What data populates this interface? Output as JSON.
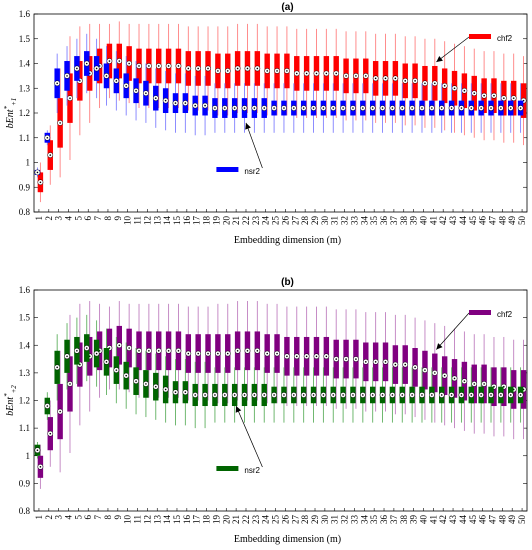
{
  "chart_data": [
    {
      "type": "box",
      "panel_title": "(a)",
      "xlabel": "Embedding dimension (m)",
      "ylabel_parts": [
        "bEn",
        "t",
        "*",
        "+1"
      ],
      "ylim": [
        0.8,
        1.6
      ],
      "yticks": [
        "0.8",
        "0.9",
        "1",
        "1.1",
        "1.2",
        "1.3",
        "1.4",
        "1.5",
        "1.6"
      ],
      "x": [
        1,
        50
      ],
      "series": [
        {
          "name": "chf2",
          "color": "#ff0000",
          "whisker_color": "#ff8080",
          "medians": [
            0.92,
            1.03,
            1.16,
            1.26,
            1.33,
            1.36,
            1.39,
            1.41,
            1.41,
            1.4,
            1.39,
            1.39,
            1.39,
            1.39,
            1.39,
            1.38,
            1.38,
            1.38,
            1.37,
            1.37,
            1.38,
            1.38,
            1.38,
            1.37,
            1.37,
            1.37,
            1.36,
            1.36,
            1.36,
            1.36,
            1.36,
            1.35,
            1.35,
            1.35,
            1.34,
            1.34,
            1.34,
            1.33,
            1.33,
            1.32,
            1.32,
            1.31,
            1.3,
            1.29,
            1.28,
            1.27,
            1.27,
            1.26,
            1.26,
            1.25
          ],
          "spread": [
            0.04,
            0.06,
            0.1,
            0.1,
            0.08,
            0.07,
            0.07,
            0.07,
            0.07,
            0.07,
            0.07,
            0.07,
            0.07,
            0.07,
            0.07,
            0.07,
            0.07,
            0.07,
            0.07,
            0.07,
            0.07,
            0.07,
            0.07,
            0.07,
            0.07,
            0.07,
            0.07,
            0.07,
            0.07,
            0.07,
            0.07,
            0.07,
            0.07,
            0.07,
            0.07,
            0.07,
            0.07,
            0.07,
            0.07,
            0.07,
            0.07,
            0.07,
            0.07,
            0.07,
            0.07,
            0.07,
            0.07,
            0.07,
            0.07,
            0.07
          ],
          "whisker_span": [
            0.08,
            0.12,
            0.22,
            0.25,
            0.22,
            0.2,
            0.17,
            0.15,
            0.16,
            0.16,
            0.17,
            0.17,
            0.17,
            0.17,
            0.17,
            0.17,
            0.17,
            0.17,
            0.18,
            0.18,
            0.18,
            0.18,
            0.18,
            0.18,
            0.18,
            0.18,
            0.18,
            0.18,
            0.18,
            0.18,
            0.18,
            0.18,
            0.18,
            0.18,
            0.18,
            0.18,
            0.18,
            0.18,
            0.18,
            0.18,
            0.18,
            0.18,
            0.18,
            0.18,
            0.18,
            0.18,
            0.18,
            0.18,
            0.18,
            0.18
          ]
        },
        {
          "name": "nsr2",
          "color": "#0000ff",
          "whisker_color": "#8080ff",
          "medians": [
            0.96,
            1.1,
            1.32,
            1.35,
            1.38,
            1.4,
            1.38,
            1.35,
            1.33,
            1.31,
            1.29,
            1.28,
            1.26,
            1.25,
            1.24,
            1.24,
            1.23,
            1.23,
            1.22,
            1.22,
            1.22,
            1.22,
            1.22,
            1.22,
            1.22,
            1.22,
            1.22,
            1.22,
            1.22,
            1.22,
            1.22,
            1.22,
            1.22,
            1.22,
            1.22,
            1.22,
            1.22,
            1.22,
            1.22,
            1.22,
            1.22,
            1.22,
            1.22,
            1.22,
            1.22,
            1.22,
            1.22,
            1.22,
            1.22,
            1.22
          ],
          "spread": [
            0.01,
            0.02,
            0.06,
            0.06,
            0.05,
            0.05,
            0.05,
            0.05,
            0.05,
            0.05,
            0.05,
            0.05,
            0.05,
            0.05,
            0.04,
            0.04,
            0.04,
            0.04,
            0.04,
            0.04,
            0.04,
            0.04,
            0.04,
            0.04,
            0.03,
            0.03,
            0.03,
            0.03,
            0.03,
            0.03,
            0.03,
            0.03,
            0.03,
            0.03,
            0.03,
            0.03,
            0.03,
            0.03,
            0.03,
            0.03,
            0.03,
            0.03,
            0.03,
            0.03,
            0.03,
            0.03,
            0.03,
            0.03,
            0.03,
            0.03
          ],
          "whisker_span": [
            0.02,
            0.03,
            0.12,
            0.12,
            0.12,
            0.12,
            0.12,
            0.12,
            0.12,
            0.12,
            0.12,
            0.12,
            0.12,
            0.12,
            0.12,
            0.12,
            0.12,
            0.12,
            0.1,
            0.1,
            0.1,
            0.1,
            0.1,
            0.1,
            0.1,
            0.1,
            0.1,
            0.1,
            0.1,
            0.1,
            0.1,
            0.1,
            0.1,
            0.1,
            0.1,
            0.1,
            0.1,
            0.1,
            0.1,
            0.1,
            0.1,
            0.1,
            0.1,
            0.1,
            0.1,
            0.1,
            0.1,
            0.1,
            0.1,
            0.1
          ]
        }
      ],
      "legend": [
        {
          "label": "chf2",
          "color": "#ff0000",
          "anchor_x": 41,
          "anchor_y": 1.39
        },
        {
          "label": "nsr2",
          "color": "#0000ff",
          "anchor_x": 22,
          "anchor_y": 1.16
        }
      ]
    },
    {
      "type": "box",
      "panel_title": "(b)",
      "xlabel": "Embedding dimension (m)",
      "ylabel_parts": [
        "bEn",
        "t",
        "*",
        "+2"
      ],
      "ylim": [
        0.8,
        1.6
      ],
      "yticks": [
        "0.8",
        "0.9",
        "1",
        "1.1",
        "1.2",
        "1.3",
        "1.4",
        "1.5",
        "1.6"
      ],
      "x": [
        1,
        50
      ],
      "series": [
        {
          "name": "chf2",
          "color": "#800080",
          "whisker_color": "#c080c0",
          "medians": [
            0.96,
            1.08,
            1.16,
            1.26,
            1.33,
            1.36,
            1.38,
            1.39,
            1.4,
            1.39,
            1.38,
            1.38,
            1.38,
            1.38,
            1.38,
            1.37,
            1.37,
            1.37,
            1.37,
            1.37,
            1.38,
            1.38,
            1.38,
            1.37,
            1.37,
            1.36,
            1.36,
            1.36,
            1.36,
            1.36,
            1.35,
            1.35,
            1.35,
            1.34,
            1.34,
            1.34,
            1.33,
            1.33,
            1.32,
            1.31,
            1.3,
            1.29,
            1.28,
            1.27,
            1.26,
            1.26,
            1.25,
            1.25,
            1.24,
            1.24
          ],
          "spread": [
            0.04,
            0.06,
            0.1,
            0.1,
            0.08,
            0.07,
            0.07,
            0.07,
            0.07,
            0.07,
            0.07,
            0.07,
            0.07,
            0.07,
            0.07,
            0.07,
            0.07,
            0.07,
            0.07,
            0.07,
            0.07,
            0.07,
            0.07,
            0.07,
            0.07,
            0.07,
            0.07,
            0.07,
            0.07,
            0.07,
            0.07,
            0.07,
            0.07,
            0.07,
            0.07,
            0.07,
            0.07,
            0.07,
            0.07,
            0.07,
            0.07,
            0.07,
            0.07,
            0.07,
            0.07,
            0.07,
            0.07,
            0.07,
            0.07,
            0.07
          ],
          "whisker_span": [
            0.08,
            0.12,
            0.22,
            0.25,
            0.22,
            0.2,
            0.17,
            0.15,
            0.16,
            0.16,
            0.17,
            0.17,
            0.17,
            0.17,
            0.17,
            0.17,
            0.17,
            0.17,
            0.18,
            0.18,
            0.18,
            0.18,
            0.18,
            0.18,
            0.18,
            0.18,
            0.18,
            0.18,
            0.18,
            0.18,
            0.18,
            0.18,
            0.18,
            0.18,
            0.18,
            0.18,
            0.18,
            0.18,
            0.18,
            0.18,
            0.18,
            0.18,
            0.18,
            0.18,
            0.18,
            0.18,
            0.18,
            0.18,
            0.18,
            0.18
          ]
        },
        {
          "name": "nsr2",
          "color": "#006400",
          "whisker_color": "#60b060",
          "medians": [
            1.02,
            1.18,
            1.32,
            1.36,
            1.38,
            1.39,
            1.37,
            1.34,
            1.31,
            1.29,
            1.27,
            1.26,
            1.25,
            1.24,
            1.23,
            1.23,
            1.22,
            1.22,
            1.22,
            1.22,
            1.22,
            1.22,
            1.22,
            1.22,
            1.22,
            1.22,
            1.22,
            1.22,
            1.22,
            1.22,
            1.22,
            1.22,
            1.22,
            1.22,
            1.22,
            1.22,
            1.22,
            1.22,
            1.22,
            1.22,
            1.22,
            1.22,
            1.22,
            1.22,
            1.22,
            1.22,
            1.22,
            1.22,
            1.22,
            1.22
          ],
          "spread": [
            0.02,
            0.03,
            0.06,
            0.06,
            0.05,
            0.05,
            0.05,
            0.05,
            0.05,
            0.05,
            0.05,
            0.05,
            0.05,
            0.05,
            0.04,
            0.04,
            0.04,
            0.04,
            0.04,
            0.04,
            0.04,
            0.04,
            0.04,
            0.04,
            0.03,
            0.03,
            0.03,
            0.03,
            0.03,
            0.03,
            0.03,
            0.03,
            0.03,
            0.03,
            0.03,
            0.03,
            0.03,
            0.03,
            0.03,
            0.03,
            0.03,
            0.03,
            0.03,
            0.03,
            0.03,
            0.03,
            0.03,
            0.03,
            0.03,
            0.03
          ],
          "whisker_span": [
            0.03,
            0.05,
            0.12,
            0.12,
            0.12,
            0.12,
            0.12,
            0.12,
            0.12,
            0.12,
            0.12,
            0.12,
            0.12,
            0.12,
            0.12,
            0.12,
            0.12,
            0.12,
            0.1,
            0.1,
            0.1,
            0.1,
            0.1,
            0.1,
            0.1,
            0.1,
            0.1,
            0.1,
            0.1,
            0.1,
            0.1,
            0.1,
            0.1,
            0.1,
            0.1,
            0.1,
            0.1,
            0.1,
            0.1,
            0.1,
            0.1,
            0.1,
            0.1,
            0.1,
            0.1,
            0.1,
            0.1,
            0.1,
            0.1,
            0.1
          ]
        }
      ],
      "legend": [
        {
          "label": "chf2",
          "color": "#800080",
          "anchor_x": 41,
          "anchor_y": 1.37
        },
        {
          "label": "nsr2",
          "color": "#006400",
          "anchor_x": 21,
          "anchor_y": 1.18
        }
      ]
    }
  ]
}
